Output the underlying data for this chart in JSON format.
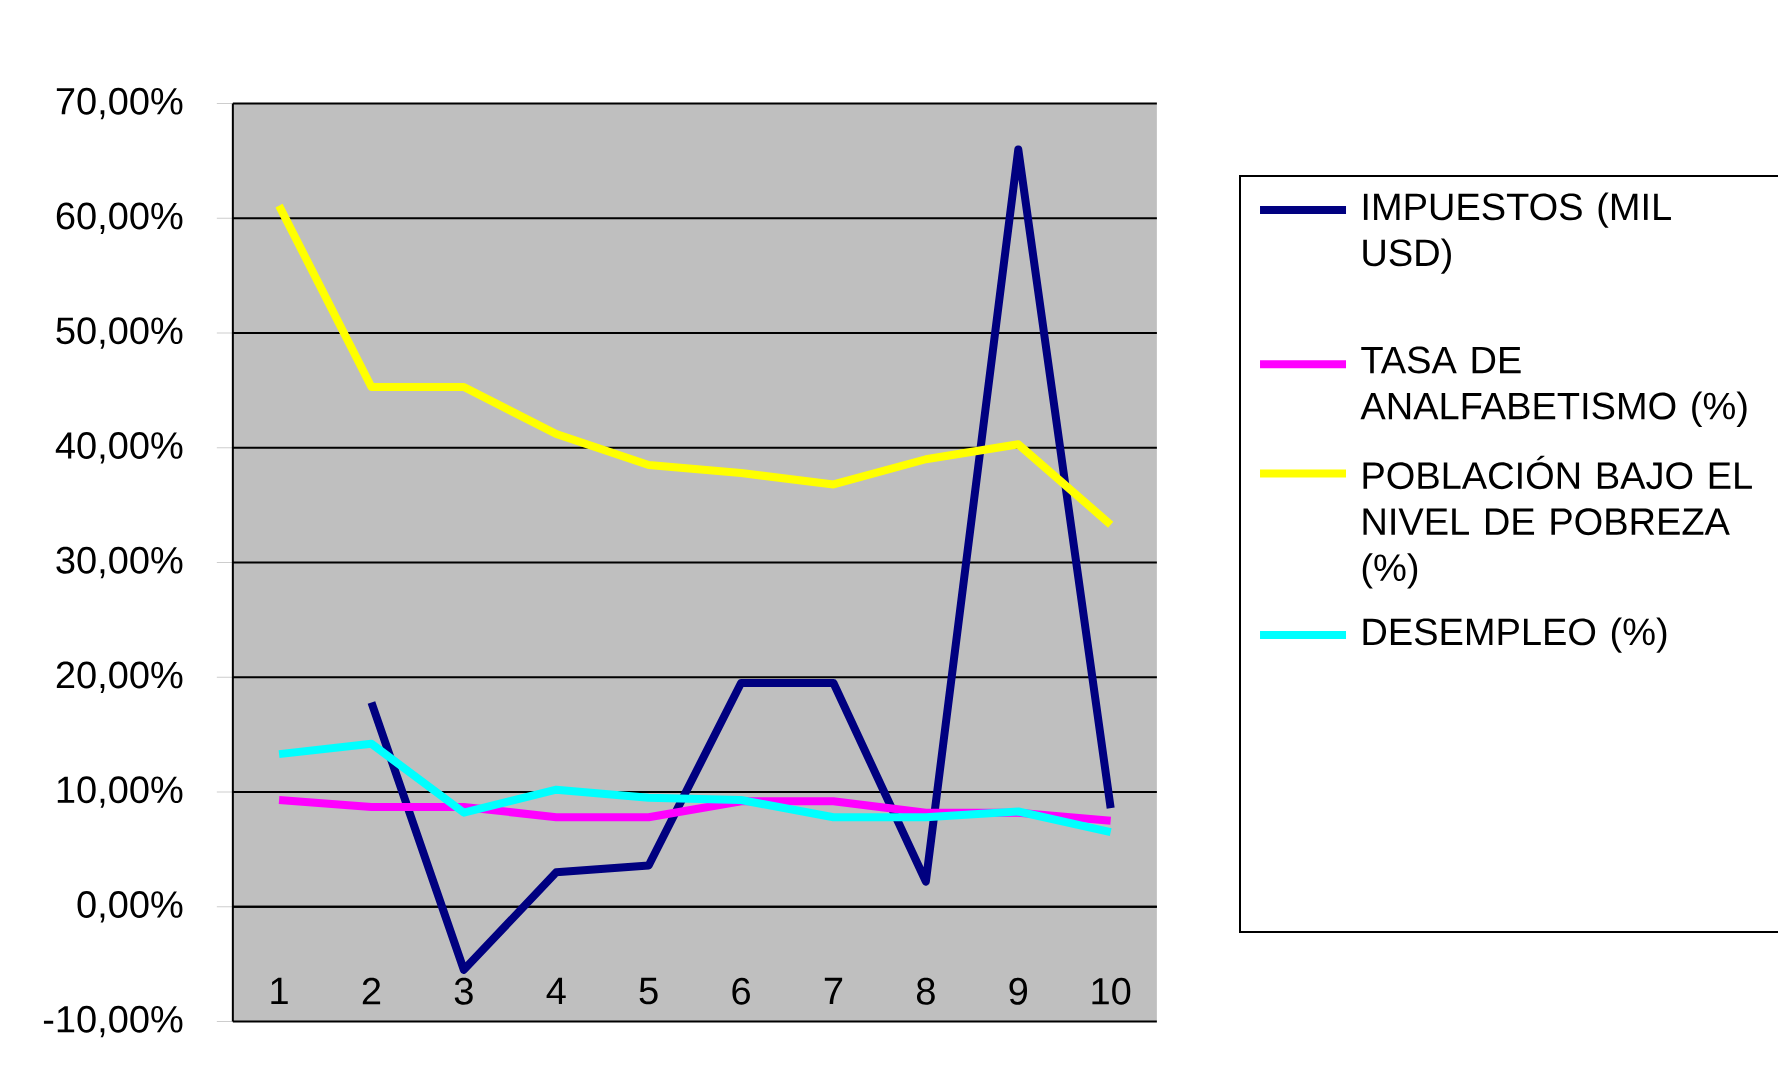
{
  "chart_data": {
    "type": "line",
    "categories": [
      "1",
      "2",
      "3",
      "4",
      "5",
      "6",
      "7",
      "8",
      "9",
      "10"
    ],
    "series": [
      {
        "name": "IMPUESTOS (MIL USD)",
        "color": "#000080",
        "values": [
          null,
          17.8,
          -5.5,
          3.0,
          3.6,
          19.5,
          19.5,
          2.2,
          66,
          8.6
        ]
      },
      {
        "name": "TASA DE ANALFABETISMO (%)",
        "color": "#ff00ff",
        "values": [
          9.3,
          8.7,
          8.7,
          7.8,
          7.8,
          9.2,
          9.2,
          8.2,
          8.2,
          7.5
        ]
      },
      {
        "name": "POBLACIÓN BAJO EL NIVEL DE POBREZA (%)",
        "color": "#ffff00",
        "values": [
          61.1,
          45.3,
          45.3,
          41.2,
          38.5,
          37.8,
          36.8,
          39,
          40.3,
          33.3
        ]
      },
      {
        "name": "DESEMPLEO (%)",
        "color": "#00ffff",
        "values": [
          13.3,
          14.2,
          8.2,
          10.2,
          9.5,
          9.3,
          7.8,
          7.8,
          8.3,
          6.5
        ]
      }
    ],
    "ylim": [
      -10,
      70
    ],
    "yticks": [
      {
        "value": -10,
        "label": "-10,00%"
      },
      {
        "value": 0,
        "label": "0,00%"
      },
      {
        "value": 10,
        "label": "10,00%"
      },
      {
        "value": 20,
        "label": "20,00%"
      },
      {
        "value": 30,
        "label": "30,00%"
      },
      {
        "value": 40,
        "label": "40,00%"
      },
      {
        "value": 50,
        "label": "50,00%"
      },
      {
        "value": 60,
        "label": "60,00%"
      },
      {
        "value": 70,
        "label": "70,00%"
      }
    ],
    "grid": "y",
    "legend": "right",
    "marker": "none",
    "line_style": "solid"
  }
}
